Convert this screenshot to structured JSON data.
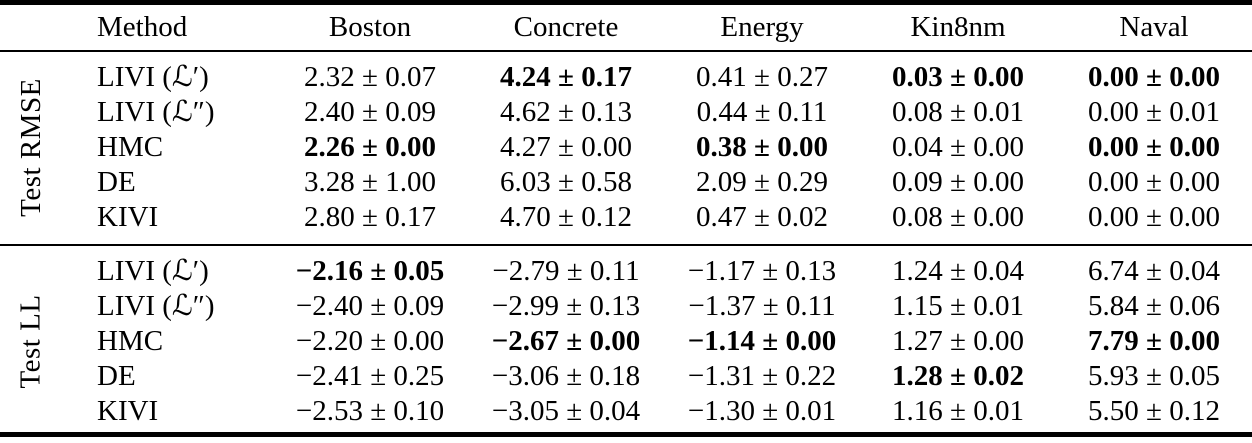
{
  "colors": {
    "text": "#000000",
    "background": "#ffffff",
    "rule": "#000000"
  },
  "table": {
    "columns": [
      "Method",
      "Boston",
      "Concrete",
      "Energy",
      "Kin8nm",
      "Naval"
    ],
    "sections": [
      {
        "label": "Test RMSE",
        "rows": [
          {
            "method": "LIVI (ℒ′)",
            "values": [
              "2.32 ± 0.07",
              "4.24 ± 0.17",
              "0.41 ± 0.27",
              "0.03 ± 0.00",
              "0.00 ± 0.00"
            ],
            "bold": [
              false,
              true,
              false,
              true,
              true
            ]
          },
          {
            "method": "LIVI (ℒ″)",
            "values": [
              "2.40 ± 0.09",
              "4.62 ± 0.13",
              "0.44 ± 0.11",
              "0.08 ± 0.01",
              "0.00 ± 0.01"
            ],
            "bold": [
              false,
              false,
              false,
              false,
              false
            ]
          },
          {
            "method": "HMC",
            "values": [
              "2.26 ± 0.00",
              "4.27 ± 0.00",
              "0.38 ± 0.00",
              "0.04 ± 0.00",
              "0.00 ± 0.00"
            ],
            "bold": [
              true,
              false,
              true,
              false,
              true
            ]
          },
          {
            "method": "DE",
            "values": [
              "3.28 ± 1.00",
              "6.03 ± 0.58",
              "2.09 ± 0.29",
              "0.09 ± 0.00",
              "0.00 ± 0.00"
            ],
            "bold": [
              false,
              false,
              false,
              false,
              false
            ]
          },
          {
            "method": "KIVI",
            "values": [
              "2.80 ± 0.17",
              "4.70 ± 0.12",
              "0.47 ± 0.02",
              "0.08 ± 0.00",
              "0.00 ± 0.00"
            ],
            "bold": [
              false,
              false,
              false,
              false,
              false
            ]
          }
        ]
      },
      {
        "label": "Test LL",
        "rows": [
          {
            "method": "LIVI (ℒ′)",
            "values": [
              "−2.16 ± 0.05",
              "−2.79 ± 0.11",
              "−1.17 ± 0.13",
              "1.24 ± 0.04",
              "6.74 ± 0.04"
            ],
            "bold": [
              true,
              false,
              false,
              false,
              false
            ]
          },
          {
            "method": "LIVI (ℒ″)",
            "values": [
              "−2.40 ± 0.09",
              "−2.99 ± 0.13",
              "−1.37 ± 0.11",
              "1.15 ± 0.01",
              "5.84 ± 0.06"
            ],
            "bold": [
              false,
              false,
              false,
              false,
              false
            ]
          },
          {
            "method": "HMC",
            "values": [
              "−2.20 ± 0.00",
              "−2.67 ± 0.00",
              "−1.14 ± 0.00",
              "1.27 ± 0.00",
              "7.79 ± 0.00"
            ],
            "bold": [
              false,
              true,
              true,
              false,
              true
            ]
          },
          {
            "method": "DE",
            "values": [
              "−2.41 ± 0.25",
              "−3.06 ± 0.18",
              "−1.31 ± 0.22",
              "1.28 ± 0.02",
              "5.93 ± 0.05"
            ],
            "bold": [
              false,
              false,
              false,
              true,
              false
            ]
          },
          {
            "method": "KIVI",
            "values": [
              "−2.53 ± 0.10",
              "−3.05 ± 0.04",
              "−1.30 ± 0.01",
              "1.16 ± 0.01",
              "5.50 ± 0.12"
            ],
            "bold": [
              false,
              false,
              false,
              false,
              false
            ]
          }
        ]
      }
    ]
  }
}
